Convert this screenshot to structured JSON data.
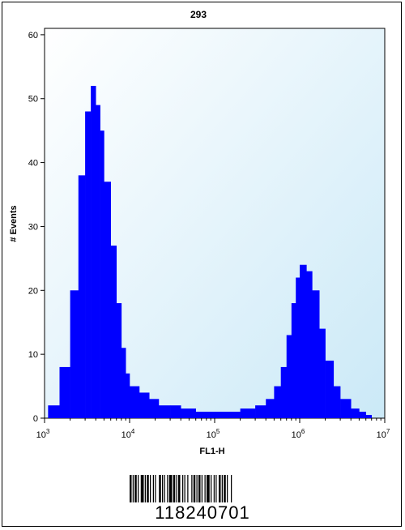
{
  "chart_data": {
    "type": "histogram",
    "title": "293",
    "xlabel": "FL1-H",
    "ylabel": "# Events",
    "x_scale": "log",
    "xlim": [
      1000,
      10000000
    ],
    "ylim": [
      0,
      61
    ],
    "grid": false,
    "legend": "none",
    "x_ticks": [
      {
        "value": 1000,
        "base": "10",
        "exp": "3"
      },
      {
        "value": 10000,
        "base": "10",
        "exp": "4"
      },
      {
        "value": 100000,
        "base": "10",
        "exp": "5"
      },
      {
        "value": 1000000,
        "base": "10",
        "exp": "6"
      },
      {
        "value": 10000000,
        "base": "10",
        "exp": "7"
      }
    ],
    "y_ticks": [
      0,
      10,
      20,
      30,
      40,
      50,
      60
    ],
    "fill_color": "#0000ff",
    "background_gradient": [
      "#ffffff",
      "#cbe9f7"
    ],
    "series": [
      {
        "x": [
          1100,
          1500,
          2000,
          2500,
          3000,
          3500,
          4000,
          4500,
          5000,
          6000,
          7000,
          8000,
          9000,
          10000,
          13000,
          17000,
          22000,
          30000,
          40000,
          60000,
          80000,
          100000,
          150000,
          200000,
          300000,
          400000,
          500000,
          600000,
          700000,
          800000,
          900000,
          1000000,
          1200000,
          1400000,
          1700000,
          2000000,
          2500000,
          3000000,
          4000000,
          5000000,
          6000000,
          7000000
        ],
        "y": [
          2,
          8,
          20,
          38,
          48,
          52,
          49,
          45,
          37,
          27,
          18,
          11,
          7,
          5,
          4,
          3,
          2,
          2,
          1.5,
          1,
          1,
          1,
          1,
          1.5,
          2,
          3,
          5,
          8,
          13,
          18,
          22,
          24,
          23,
          20,
          14,
          9,
          5,
          3,
          1.5,
          1,
          0.5,
          0
        ]
      }
    ]
  },
  "barcode": {
    "number": "118240701"
  }
}
